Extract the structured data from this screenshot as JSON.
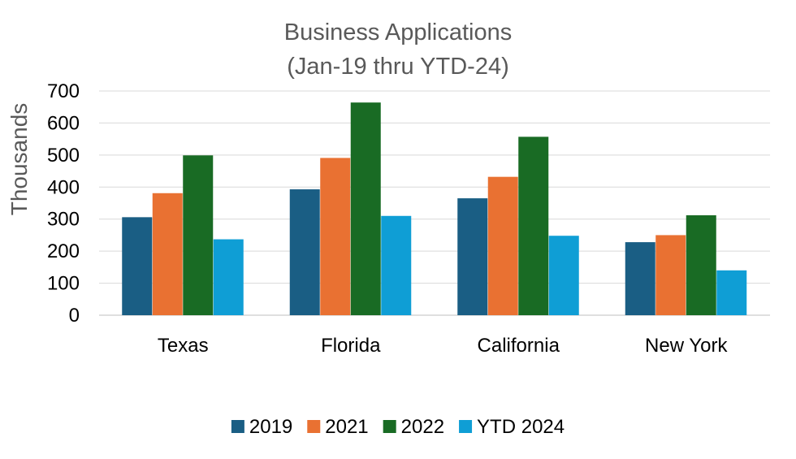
{
  "chart_data": {
    "type": "bar",
    "title": "Business Applications",
    "subtitle": "(Jan-19 thru YTD-24)",
    "xlabel": "",
    "ylabel": "Thousands",
    "ylim": [
      0,
      700
    ],
    "yticks": [
      0,
      100,
      200,
      300,
      400,
      500,
      600,
      700
    ],
    "grid": true,
    "legend": "bottom",
    "categories": [
      "Texas",
      "Florida",
      "California",
      "New York"
    ],
    "series": [
      {
        "name": "2019",
        "color": "#1a5e84",
        "values": [
          306,
          393,
          365,
          228
        ]
      },
      {
        "name": "2021",
        "color": "#e97132",
        "values": [
          381,
          491,
          432,
          250
        ]
      },
      {
        "name": "2022",
        "color": "#196b24",
        "values": [
          499,
          664,
          557,
          312
        ]
      },
      {
        "name": "YTD 2024",
        "color": "#0f9ed5",
        "values": [
          237,
          310,
          248,
          140
        ]
      }
    ]
  }
}
